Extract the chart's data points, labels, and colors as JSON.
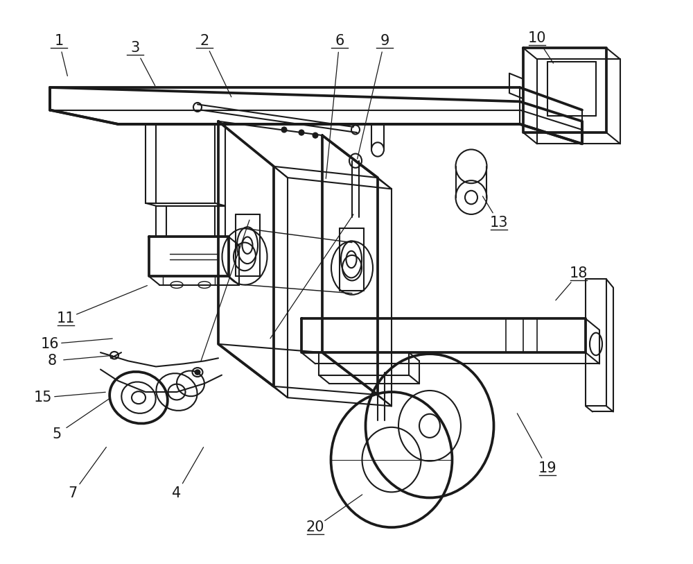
{
  "background_color": "#ffffff",
  "line_color": "#1a1a1a",
  "line_width": 1.5,
  "figure_width": 10.0,
  "figure_height": 8.13,
  "label_fontsize": 15,
  "underline_labels": [
    "1",
    "2",
    "3",
    "6",
    "9",
    "10",
    "11",
    "13",
    "18",
    "19",
    "20"
  ],
  "labels": {
    "1": [
      0.085,
      0.072,
      0.098,
      0.138
    ],
    "2": [
      0.295,
      0.072,
      0.335,
      0.175
    ],
    "3": [
      0.195,
      0.085,
      0.225,
      0.155
    ],
    "4": [
      0.255,
      0.875,
      0.295,
      0.79
    ],
    "5": [
      0.082,
      0.77,
      0.16,
      0.705
    ],
    "6": [
      0.49,
      0.072,
      0.47,
      0.32
    ],
    "7": [
      0.105,
      0.875,
      0.155,
      0.79
    ],
    "8": [
      0.075,
      0.64,
      0.165,
      0.63
    ],
    "9": [
      0.555,
      0.072,
      0.515,
      0.285
    ],
    "10": [
      0.775,
      0.068,
      0.8,
      0.115
    ],
    "11": [
      0.095,
      0.565,
      0.215,
      0.505
    ],
    "13": [
      0.72,
      0.395,
      0.695,
      0.345
    ],
    "15": [
      0.062,
      0.705,
      0.155,
      0.695
    ],
    "16": [
      0.072,
      0.61,
      0.165,
      0.6
    ],
    "18": [
      0.835,
      0.485,
      0.8,
      0.535
    ],
    "19": [
      0.79,
      0.83,
      0.745,
      0.73
    ],
    "20": [
      0.455,
      0.935,
      0.525,
      0.875
    ]
  }
}
